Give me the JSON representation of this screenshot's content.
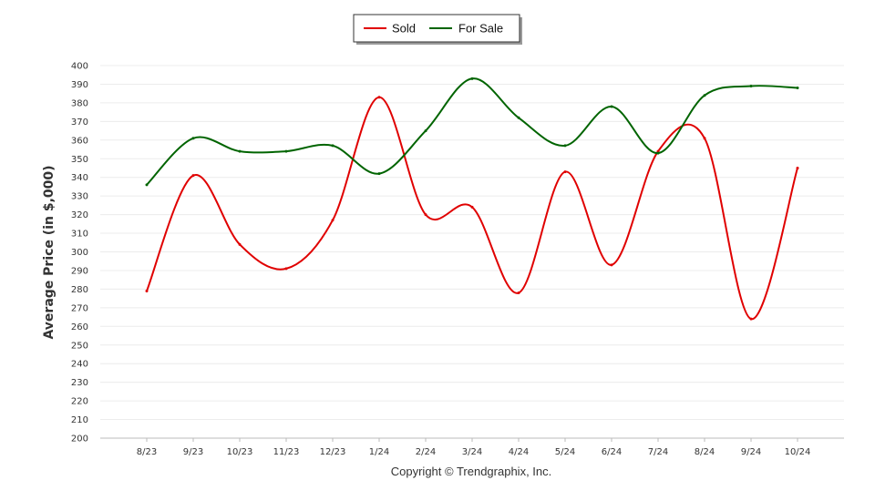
{
  "chart_data": {
    "type": "line",
    "ylabel": "Average Price (in $,000)",
    "xlabel": "",
    "categories": [
      "8/23",
      "9/23",
      "10/23",
      "11/23",
      "12/23",
      "1/24",
      "2/24",
      "3/24",
      "4/24",
      "5/24",
      "6/24",
      "7/24",
      "8/24",
      "9/24",
      "10/24"
    ],
    "ylim": [
      200,
      400
    ],
    "yticks": [
      200,
      210,
      220,
      230,
      240,
      250,
      260,
      270,
      280,
      290,
      300,
      310,
      320,
      330,
      340,
      350,
      360,
      370,
      380,
      390,
      400
    ],
    "grid": true,
    "legend_placement": "top-center",
    "series": [
      {
        "name": "Sold",
        "color": "#e00000",
        "values": [
          279,
          341,
          304,
          291,
          317,
          383,
          320,
          324,
          278,
          343,
          293,
          354,
          361,
          264,
          345
        ]
      },
      {
        "name": "For Sale",
        "color": "#006400",
        "values": [
          336,
          361,
          354,
          354,
          357,
          342,
          365,
          393,
          372,
          357,
          378,
          353,
          384,
          389,
          388
        ]
      }
    ]
  },
  "footer": {
    "copyright": "Copyright © Trendgraphix, Inc."
  }
}
